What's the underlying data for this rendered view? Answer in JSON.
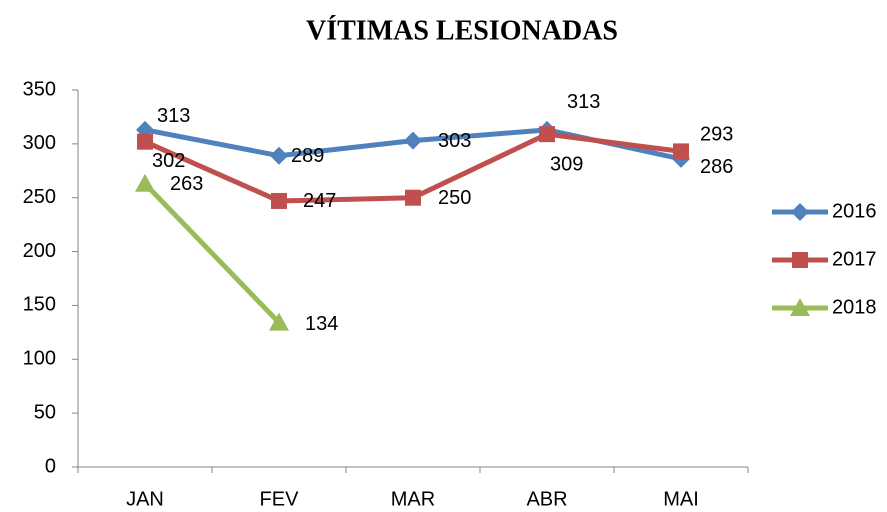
{
  "chart_data": {
    "type": "line",
    "title": "VÍTIMAS LESIONADAS",
    "categories": [
      "JAN",
      "FEV",
      "MAR",
      "ABR",
      "MAI"
    ],
    "series": [
      {
        "name": "2016",
        "color": "#4f81bd",
        "marker": "diamond",
        "values": [
          313,
          289,
          303,
          313,
          286
        ]
      },
      {
        "name": "2017",
        "color": "#c0504d",
        "marker": "square",
        "values": [
          302,
          247,
          250,
          309,
          293
        ]
      },
      {
        "name": "2018",
        "color": "#9bbb59",
        "marker": "triangle",
        "values": [
          263,
          134,
          null,
          null,
          null
        ]
      }
    ],
    "ylim": [
      0,
      350
    ],
    "yticks": [
      0,
      50,
      100,
      150,
      200,
      250,
      300,
      350
    ],
    "grid": false,
    "legend": "right",
    "data_labels": true
  }
}
